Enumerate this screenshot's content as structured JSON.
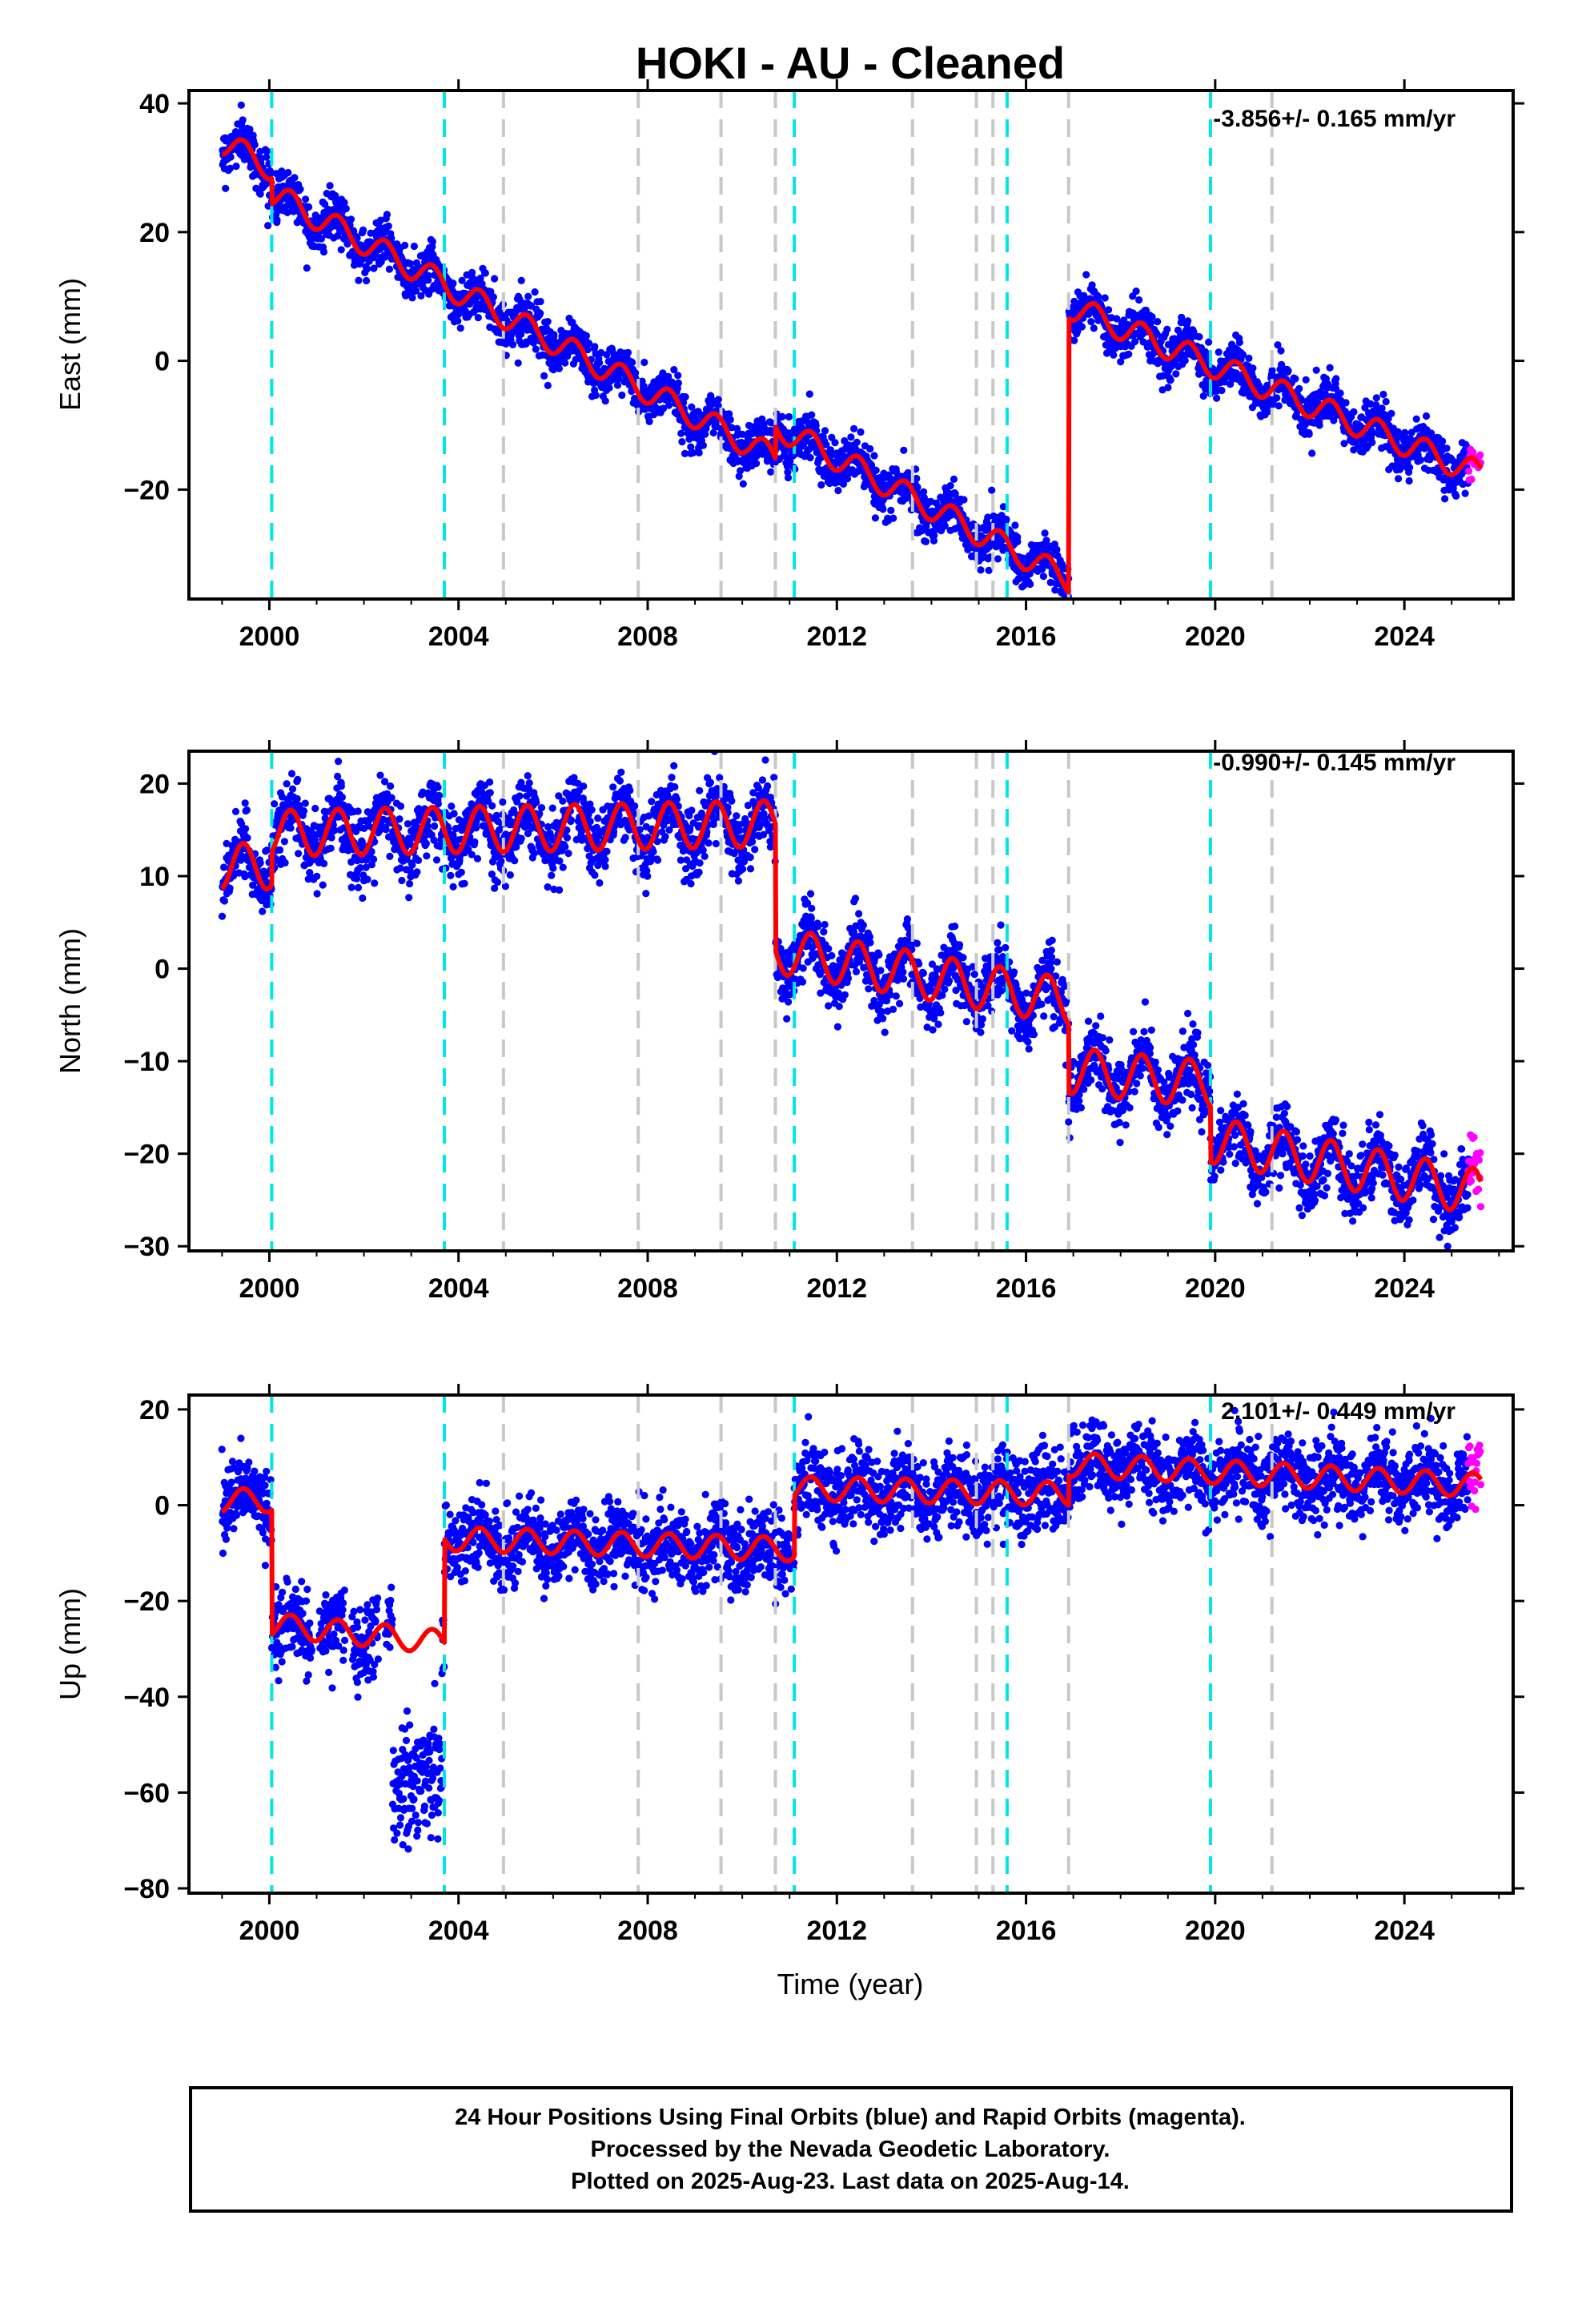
{
  "title": "HOKI  - AU - Cleaned",
  "xlabel": "Time (year)",
  "footer": {
    "line1": "24 Hour Positions Using Final Orbits (blue) and Rapid Orbits (magenta).",
    "line2": "Processed by the Nevada Geodetic Laboratory.",
    "line3": "Plotted on 2025-Aug-23. Last data on 2025-Aug-14."
  },
  "colors": {
    "final_orbits": "#0000ff",
    "rapid_orbits": "#ff00ff",
    "model": "#ff0000",
    "equipment_change": "#00e5e5",
    "earthquake": "#c8c8c8"
  },
  "chart_data": [
    {
      "type": "scatter",
      "component": "east",
      "ylabel": "East (mm)",
      "rate": "-3.856+/- 0.165 mm/yr",
      "xlim": [
        1998.3,
        2026.3
      ],
      "ylim": [
        -37,
        42
      ],
      "xticks": [
        2000,
        2004,
        2008,
        2012,
        2016,
        2020,
        2024
      ],
      "yticks": [
        -20,
        0,
        20,
        40
      ],
      "equipment_change_years": [
        2000.05,
        2003.7,
        2011.1,
        2015.6,
        2019.9
      ],
      "earthquake_years": [
        2004.95,
        2007.8,
        2009.55,
        2010.7,
        2013.6,
        2014.95,
        2015.3,
        2016.9,
        2021.2
      ],
      "model_segments": [
        {
          "t0": 1999.0,
          "t1": 2016.9,
          "v0": 34.0,
          "rate": -3.856,
          "amp": 2.0
        },
        {
          "t0": 2016.9,
          "t1": 2025.6,
          "v0": 8.5,
          "rate": -3.0,
          "amp": 2.0
        }
      ],
      "model_offsets": [
        {
          "t": 2000.05,
          "dv": -4.0
        },
        {
          "t": 2010.7,
          "dv": 5.0
        },
        {
          "t": 2011.1,
          "dv": 0.0
        }
      ],
      "scatter_sigma": 1.8,
      "rapid_orbits_range": [
        2025.35,
        2025.62
      ]
    },
    {
      "type": "scatter",
      "component": "north",
      "ylabel": "North (mm)",
      "rate": "-0.990+/- 0.145 mm/yr",
      "xlim": [
        1998.3,
        2026.3
      ],
      "ylim": [
        -30.5,
        23.5
      ],
      "xticks": [
        2000,
        2004,
        2008,
        2012,
        2016,
        2020,
        2024
      ],
      "yticks": [
        -30,
        -20,
        -10,
        0,
        10,
        20
      ],
      "equipment_change_years": [
        2000.05,
        2003.7,
        2011.1,
        2015.6,
        2019.9
      ],
      "earthquake_years": [
        2004.95,
        2007.8,
        2009.55,
        2010.7,
        2013.6,
        2014.95,
        2015.3,
        2016.9,
        2021.2
      ],
      "model_segments": [
        {
          "t0": 1999.0,
          "t1": 2010.7,
          "v0": 11.0,
          "rate": 0.1,
          "amp": 2.5
        },
        {
          "t0": 2010.7,
          "t1": 2016.9,
          "v0": 2.0,
          "rate": -0.9,
          "amp": 2.5
        },
        {
          "t0": 2016.9,
          "t1": 2019.9,
          "v0": -11.0,
          "rate": -0.5,
          "amp": 2.5
        },
        {
          "t0": 2019.9,
          "t1": 2025.6,
          "v0": -18.5,
          "rate": -1.0,
          "amp": 2.5
        }
      ],
      "model_offsets": [
        {
          "t": 2000.05,
          "dv": 3.5
        }
      ],
      "scatter_sigma": 1.8,
      "rapid_orbits_range": [
        2025.35,
        2025.62
      ]
    },
    {
      "type": "scatter",
      "component": "up",
      "ylabel": "Up (mm)",
      "rate": "2.101+/- 0.449 mm/yr",
      "xlim": [
        1998.3,
        2026.3
      ],
      "ylim": [
        -81,
        23
      ],
      "xticks": [
        2000,
        2004,
        2008,
        2012,
        2016,
        2020,
        2024
      ],
      "yticks": [
        -80,
        -60,
        -40,
        -20,
        0,
        20
      ],
      "equipment_change_years": [
        2000.05,
        2003.7,
        2011.1,
        2015.6,
        2019.9
      ],
      "earthquake_years": [
        2004.95,
        2007.8,
        2009.55,
        2010.7,
        2013.6,
        2014.95,
        2015.3,
        2016.9,
        2021.2
      ],
      "model_segments": [
        {
          "t0": 1999.0,
          "t1": 2000.05,
          "v0": 1.0,
          "rate": 0.0,
          "amp": 2.5
        },
        {
          "t0": 2000.05,
          "t1": 2003.7,
          "v0": -25.0,
          "rate": -1.0,
          "amp": 2.5
        },
        {
          "t0": 2003.7,
          "t1": 2011.1,
          "v0": -7.0,
          "rate": -0.3,
          "amp": 2.5
        },
        {
          "t0": 2011.1,
          "t1": 2016.9,
          "v0": 3.5,
          "rate": -0.2,
          "amp": 2.5
        },
        {
          "t0": 2016.9,
          "t1": 2025.6,
          "v0": 8.5,
          "rate": -0.5,
          "amp": 2.5
        }
      ],
      "model_offsets": [],
      "scatter_sigma": 4.0,
      "scatter_gaps": [
        [
          2000.9,
          2001.05
        ],
        [
          2001.6,
          2001.75
        ],
        [
          2002.3,
          2002.45
        ]
      ],
      "outlier_cluster": {
        "t0": 2002.6,
        "t1": 2003.65,
        "center": -58,
        "sigma": 6
      },
      "rapid_orbits_range": [
        2025.35,
        2025.62
      ]
    }
  ]
}
